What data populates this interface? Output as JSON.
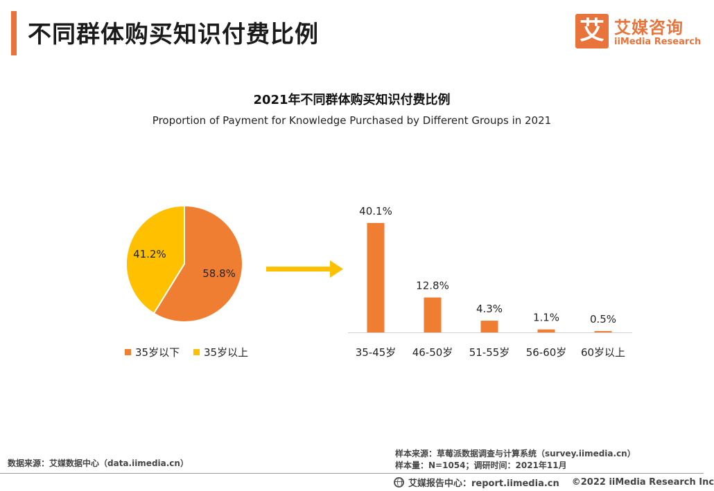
{
  "header": {
    "title": "不同群体购买知识付费比例"
  },
  "logo": {
    "mark": "艾",
    "name_cn": "艾媒咨询",
    "name_en": "iiMedia Research"
  },
  "colors": {
    "accent": "#e8743b",
    "series_under35": "#ef7e33",
    "series_over35": "#ffc000",
    "arrow": "#ffc000"
  },
  "chart_data": [
    {
      "type": "pie",
      "title": "2021年不同群体购买知识付费比例",
      "subtitle": "Proportion of Payment for Knowledge Purchased by Different Groups in 2021",
      "slices": [
        {
          "label": "35岁以下",
          "value": 58.8,
          "display": "58.8%",
          "color": "#ef7e33"
        },
        {
          "label": "35岁以上",
          "value": 41.2,
          "display": "41.2%",
          "color": "#ffc000"
        }
      ],
      "legend": "bottom"
    },
    {
      "type": "bar",
      "categories": [
        "35-45岁",
        "46-50岁",
        "51-55岁",
        "56-60岁",
        "60岁以上"
      ],
      "values": [
        40.1,
        12.8,
        4.3,
        1.1,
        0.5
      ],
      "labels": [
        "40.1%",
        "12.8%",
        "4.3%",
        "1.1%",
        "0.5%"
      ],
      "color": "#ef7e33",
      "ylim": [
        0,
        40.1
      ]
    }
  ],
  "footer": {
    "source_left": "数据来源：艾媒数据中心（data.iimedia.cn）",
    "sample_source": "样本来源：草莓派数据调查与计算系统（survey.iimedia.cn）",
    "sample_size": "样本量：N=1054；调研时间：2021年11月",
    "report_center": "艾媒报告中心：report.iimedia.cn",
    "copyright": "©2022  iiMedia Research  Inc"
  }
}
